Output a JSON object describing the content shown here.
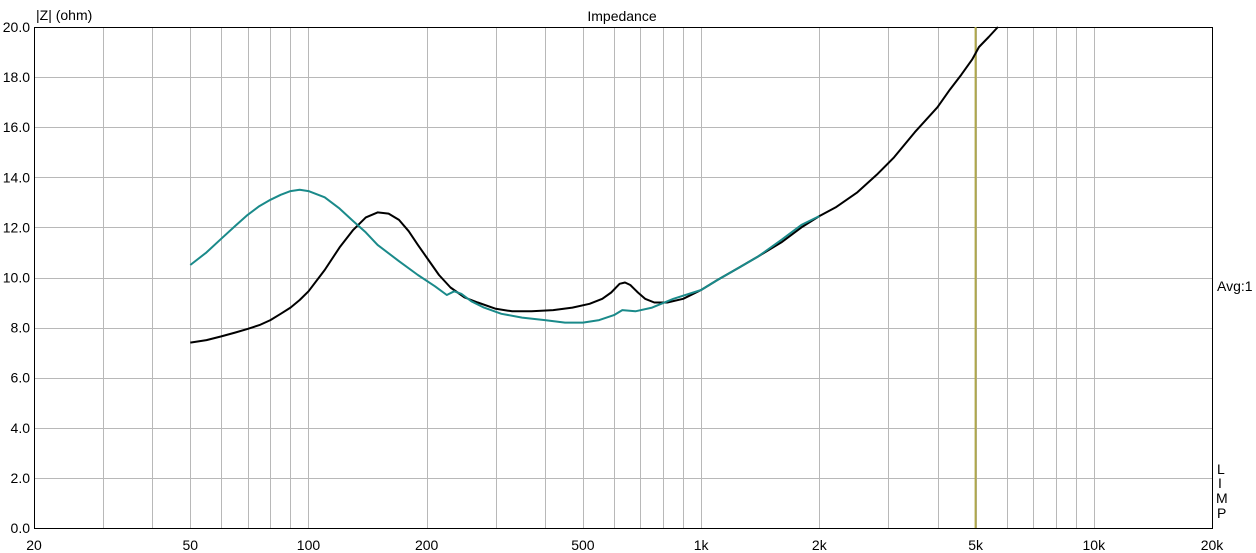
{
  "chart_data": {
    "type": "line",
    "title": "Impedance",
    "ylabel": "|Z| (ohm)",
    "xlabel": "",
    "x_scale": "log",
    "xlim": [
      20,
      20000
    ],
    "ylim": [
      0,
      20
    ],
    "grid": true,
    "x_ticks": [
      {
        "value": 20,
        "label": "20"
      },
      {
        "value": 50,
        "label": "50"
      },
      {
        "value": 100,
        "label": "100"
      },
      {
        "value": 200,
        "label": "200"
      },
      {
        "value": 500,
        "label": "500"
      },
      {
        "value": 1000,
        "label": "1k"
      },
      {
        "value": 2000,
        "label": "2k"
      },
      {
        "value": 5000,
        "label": "5k"
      },
      {
        "value": 10000,
        "label": "10k"
      },
      {
        "value": 20000,
        "label": "20k"
      }
    ],
    "y_ticks": [
      {
        "value": 0,
        "label": "0.0"
      },
      {
        "value": 2,
        "label": "2.0"
      },
      {
        "value": 4,
        "label": "4.0"
      },
      {
        "value": 6,
        "label": "6.0"
      },
      {
        "value": 8,
        "label": "8.0"
      },
      {
        "value": 10,
        "label": "10.0"
      },
      {
        "value": 12,
        "label": "12.0"
      },
      {
        "value": 14,
        "label": "14.0"
      },
      {
        "value": 16,
        "label": "16.0"
      },
      {
        "value": 18,
        "label": "18.0"
      },
      {
        "value": 20,
        "label": "20.0"
      }
    ],
    "series": [
      {
        "color": "#000000",
        "points": [
          [
            50,
            7.4
          ],
          [
            55,
            7.5
          ],
          [
            60,
            7.65
          ],
          [
            65,
            7.8
          ],
          [
            70,
            7.95
          ],
          [
            75,
            8.1
          ],
          [
            80,
            8.3
          ],
          [
            85,
            8.55
          ],
          [
            90,
            8.8
          ],
          [
            95,
            9.1
          ],
          [
            100,
            9.45
          ],
          [
            110,
            10.3
          ],
          [
            120,
            11.2
          ],
          [
            130,
            11.9
          ],
          [
            140,
            12.4
          ],
          [
            150,
            12.6
          ],
          [
            160,
            12.55
          ],
          [
            170,
            12.3
          ],
          [
            180,
            11.85
          ],
          [
            190,
            11.3
          ],
          [
            200,
            10.8
          ],
          [
            215,
            10.1
          ],
          [
            230,
            9.6
          ],
          [
            250,
            9.2
          ],
          [
            270,
            9.0
          ],
          [
            300,
            8.75
          ],
          [
            330,
            8.65
          ],
          [
            370,
            8.65
          ],
          [
            420,
            8.7
          ],
          [
            470,
            8.8
          ],
          [
            520,
            8.95
          ],
          [
            560,
            9.15
          ],
          [
            590,
            9.4
          ],
          [
            620,
            9.75
          ],
          [
            640,
            9.8
          ],
          [
            660,
            9.7
          ],
          [
            690,
            9.4
          ],
          [
            720,
            9.15
          ],
          [
            760,
            9.0
          ],
          [
            820,
            9.0
          ],
          [
            900,
            9.15
          ],
          [
            1000,
            9.5
          ],
          [
            1100,
            9.9
          ],
          [
            1250,
            10.4
          ],
          [
            1400,
            10.85
          ],
          [
            1600,
            11.4
          ],
          [
            1800,
            12.0
          ],
          [
            2000,
            12.45
          ],
          [
            2200,
            12.8
          ],
          [
            2500,
            13.4
          ],
          [
            2800,
            14.1
          ],
          [
            3100,
            14.8
          ],
          [
            3500,
            15.8
          ],
          [
            4000,
            16.8
          ],
          [
            4300,
            17.5
          ],
          [
            4600,
            18.1
          ],
          [
            4900,
            18.7
          ],
          [
            5100,
            19.2
          ],
          [
            5400,
            19.6
          ],
          [
            5700,
            20.0
          ]
        ]
      },
      {
        "color": "#1a8a8a",
        "points": [
          [
            50,
            10.5
          ],
          [
            55,
            11.0
          ],
          [
            60,
            11.55
          ],
          [
            65,
            12.05
          ],
          [
            70,
            12.5
          ],
          [
            75,
            12.85
          ],
          [
            80,
            13.1
          ],
          [
            85,
            13.3
          ],
          [
            90,
            13.45
          ],
          [
            95,
            13.5
          ],
          [
            100,
            13.45
          ],
          [
            110,
            13.2
          ],
          [
            120,
            12.75
          ],
          [
            130,
            12.25
          ],
          [
            140,
            11.8
          ],
          [
            150,
            11.3
          ],
          [
            170,
            10.65
          ],
          [
            190,
            10.1
          ],
          [
            210,
            9.65
          ],
          [
            225,
            9.3
          ],
          [
            235,
            9.45
          ],
          [
            245,
            9.35
          ],
          [
            260,
            9.05
          ],
          [
            280,
            8.8
          ],
          [
            310,
            8.55
          ],
          [
            350,
            8.4
          ],
          [
            400,
            8.3
          ],
          [
            450,
            8.2
          ],
          [
            500,
            8.2
          ],
          [
            550,
            8.3
          ],
          [
            600,
            8.5
          ],
          [
            630,
            8.7
          ],
          [
            680,
            8.65
          ],
          [
            750,
            8.8
          ],
          [
            850,
            9.15
          ],
          [
            1000,
            9.5
          ],
          [
            1100,
            9.9
          ],
          [
            1250,
            10.4
          ],
          [
            1400,
            10.85
          ],
          [
            1600,
            11.5
          ],
          [
            1800,
            12.1
          ],
          [
            2000,
            12.45
          ]
        ]
      }
    ],
    "cursor": {
      "x": 5000,
      "color": "#b0a84a"
    },
    "right_labels": {
      "avg": "Avg:1",
      "letters": [
        "L",
        "I",
        "M",
        "P"
      ]
    }
  }
}
